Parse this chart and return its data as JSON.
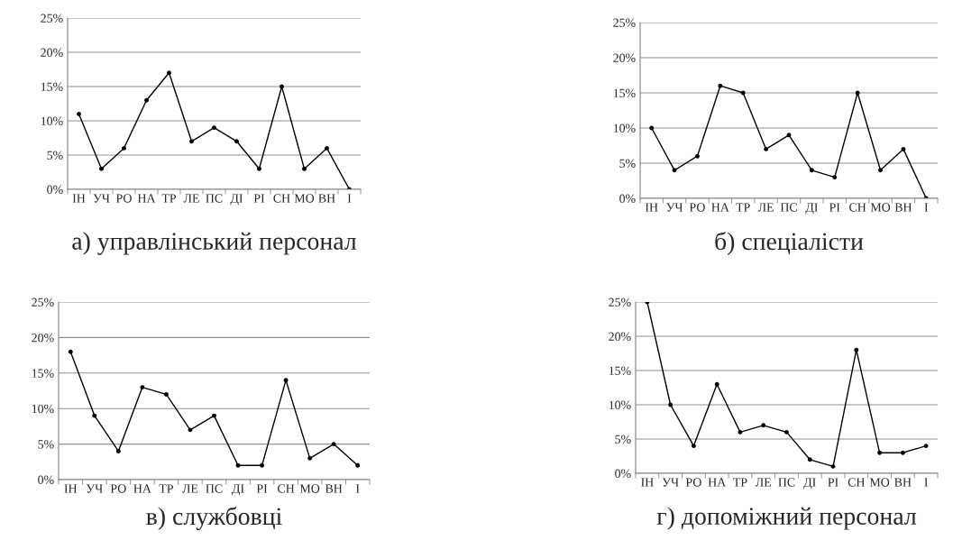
{
  "chart_data": [
    {
      "type": "line",
      "title": "а) управлінський персонал",
      "categories": [
        "ІН",
        "УЧ",
        "РО",
        "НА",
        "ТР",
        "ЛЕ",
        "ПС",
        "ДІ",
        "РІ",
        "СН",
        "МО",
        "ВН",
        "І"
      ],
      "series": [
        {
          "color": "#000000",
          "values": [
            11,
            3,
            6,
            13,
            17,
            7,
            9,
            7,
            3,
            15,
            3,
            6,
            0
          ]
        }
      ],
      "ylim": [
        0,
        25
      ],
      "yticks": [
        {
          "value": 0,
          "label": "0%"
        },
        {
          "value": 5,
          "label": "5%"
        },
        {
          "value": 10,
          "label": "10%"
        },
        {
          "value": 15,
          "label": "15%"
        },
        {
          "value": 20,
          "label": "20%"
        },
        {
          "value": 25,
          "label": "25%"
        }
      ],
      "grid": "y",
      "marker": "circle",
      "line_style": "solid"
    },
    {
      "type": "line",
      "title": "б) спеціалісти",
      "categories": [
        "ІН",
        "УЧ",
        "РО",
        "НА",
        "ТР",
        "ЛЕ",
        "ПС",
        "ДІ",
        "РІ",
        "СН",
        "МО",
        "ВН",
        "І"
      ],
      "series": [
        {
          "color": "#000000",
          "values": [
            10,
            4,
            6,
            16,
            15,
            7,
            9,
            4,
            3,
            15,
            4,
            7,
            0
          ]
        }
      ],
      "ylim": [
        0,
        25
      ],
      "yticks": [
        {
          "value": 0,
          "label": "0%"
        },
        {
          "value": 5,
          "label": "5%"
        },
        {
          "value": 10,
          "label": "10%"
        },
        {
          "value": 15,
          "label": "15%"
        },
        {
          "value": 20,
          "label": "20%"
        },
        {
          "value": 25,
          "label": "25%"
        }
      ],
      "grid": "y",
      "marker": "circle",
      "line_style": "solid"
    },
    {
      "type": "line",
      "title": "в) службовці",
      "categories": [
        "ІН",
        "УЧ",
        "РО",
        "НА",
        "ТР",
        "ЛЕ",
        "ПС",
        "ДІ",
        "РІ",
        "СН",
        "МО",
        "ВН",
        "І"
      ],
      "series": [
        {
          "color": "#000000",
          "values": [
            18,
            9,
            4,
            13,
            12,
            7,
            9,
            2,
            2,
            14,
            3,
            5,
            2
          ]
        }
      ],
      "ylim": [
        0,
        25
      ],
      "yticks": [
        {
          "value": 0,
          "label": "0%"
        },
        {
          "value": 5,
          "label": "5%"
        },
        {
          "value": 10,
          "label": "10%"
        },
        {
          "value": 15,
          "label": "15%"
        },
        {
          "value": 20,
          "label": "20%"
        },
        {
          "value": 25,
          "label": "25%"
        }
      ],
      "grid": "y",
      "marker": "circle",
      "line_style": "solid"
    },
    {
      "type": "line",
      "title": "г) допоміжний персонал",
      "categories": [
        "ІН",
        "УЧ",
        "РО",
        "НА",
        "ТР",
        "ЛЕ",
        "ПС",
        "ДІ",
        "РІ",
        "СН",
        "МО",
        "ВН",
        "І"
      ],
      "series": [
        {
          "color": "#000000",
          "values": [
            25,
            10,
            4,
            13,
            6,
            7,
            6,
            2,
            1,
            18,
            3,
            3,
            4
          ]
        }
      ],
      "ylim": [
        0,
        25
      ],
      "yticks": [
        {
          "value": 0,
          "label": "0%"
        },
        {
          "value": 5,
          "label": "5%"
        },
        {
          "value": 10,
          "label": "10%"
        },
        {
          "value": 15,
          "label": "15%"
        },
        {
          "value": 20,
          "label": "20%"
        },
        {
          "value": 25,
          "label": "25%"
        }
      ],
      "grid": "y",
      "marker": "circle",
      "line_style": "solid"
    }
  ]
}
